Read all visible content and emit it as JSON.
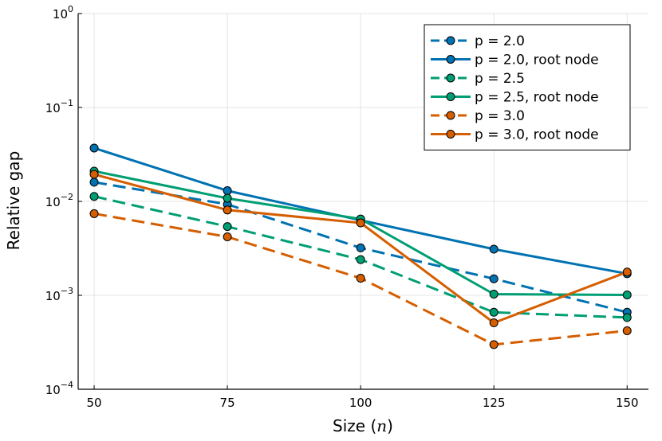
{
  "chart_data": {
    "type": "line",
    "title": "",
    "xlabel": "Size (",
    "xlabel_var": "n",
    "xlabel_close": ")",
    "ylabel": "Relative gap",
    "yscale": "log10",
    "ylim": [
      0.0001,
      1
    ],
    "xlim": [
      47,
      154
    ],
    "x": [
      50,
      75,
      100,
      125,
      150
    ],
    "xticks": [
      "50",
      "75",
      "100",
      "125",
      "150"
    ],
    "yticks": [
      {
        "value": 0.0001,
        "base": "10",
        "exp": "−4"
      },
      {
        "value": 0.001,
        "base": "10",
        "exp": "−3"
      },
      {
        "value": 0.01,
        "base": "10",
        "exp": "−2"
      },
      {
        "value": 0.1,
        "base": "10",
        "exp": "−1"
      },
      {
        "value": 1,
        "base": "10",
        "exp": "0"
      }
    ],
    "grid": true,
    "legend_position": "top-right",
    "series": [
      {
        "name": "p = 2.0",
        "color": "#0072B2",
        "style": "dashed",
        "values": [
          0.016,
          0.0093,
          0.0032,
          0.0015,
          0.00066
        ]
      },
      {
        "name": "p = 2.0, root node",
        "color": "#0072B2",
        "style": "solid",
        "values": [
          0.037,
          0.013,
          0.0063,
          0.0031,
          0.0017
        ]
      },
      {
        "name": "p = 2.5",
        "color": "#009E73",
        "style": "dashed",
        "values": [
          0.0113,
          0.0054,
          0.0024,
          0.00066,
          0.00058
        ]
      },
      {
        "name": "p = 2.5, root node",
        "color": "#009E73",
        "style": "solid",
        "values": [
          0.021,
          0.0108,
          0.0065,
          0.00103,
          0.00101
        ]
      },
      {
        "name": "p = 3.0",
        "color": "#D55E00",
        "style": "dashed",
        "values": [
          0.0074,
          0.0042,
          0.00152,
          0.000299,
          0.00042
        ]
      },
      {
        "name": "p = 3.0, root node",
        "color": "#D55E00",
        "style": "solid",
        "values": [
          0.0194,
          0.0081,
          0.0059,
          0.00051,
          0.00177
        ]
      }
    ]
  }
}
